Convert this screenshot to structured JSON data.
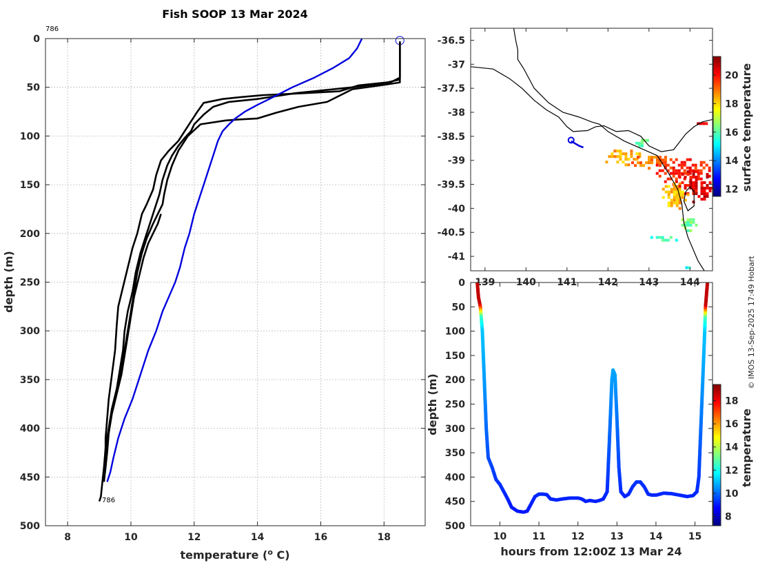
{
  "colors": {
    "profile_black": "#000000",
    "profile_blue": "#0000dd",
    "coast": "#000000"
  },
  "chart_data": [
    {
      "id": "profiles",
      "type": "line",
      "title": "Fish SOOP 13 Mar 2024",
      "xlabel": "temperature (",
      "xlabel_sup": "o",
      "xlabel_end": " C)",
      "ylabel": "depth (m)",
      "xlim": [
        7.3,
        19.3
      ],
      "ylim": [
        0,
        500
      ],
      "xticks": [
        8,
        10,
        12,
        14,
        16,
        18
      ],
      "yticks": [
        0,
        50,
        100,
        150,
        200,
        250,
        300,
        350,
        400,
        450,
        500
      ],
      "annotation_top": "786",
      "annotation_bottom": "786",
      "start_marker": [
        18.5,
        2
      ],
      "series": [
        {
          "name": "profile-down-1",
          "color": "black",
          "points": [
            [
              18.5,
              3
            ],
            [
              18.5,
              40
            ],
            [
              18.2,
              45
            ],
            [
              17.0,
              50
            ],
            [
              15.2,
              56
            ],
            [
              14.0,
              62
            ],
            [
              13.1,
              65
            ],
            [
              12.6,
              70
            ],
            [
              12.3,
              78
            ],
            [
              12.0,
              88
            ],
            [
              11.9,
              95
            ],
            [
              11.7,
              102
            ],
            [
              11.5,
              110
            ],
            [
              11.3,
              120
            ],
            [
              11.15,
              130
            ],
            [
              11.0,
              145
            ],
            [
              10.9,
              160
            ],
            [
              10.75,
              175
            ],
            [
              10.6,
              190
            ],
            [
              10.45,
              205
            ],
            [
              10.3,
              220
            ],
            [
              10.15,
              240
            ],
            [
              10.05,
              260
            ],
            [
              9.9,
              280
            ],
            [
              9.8,
              300
            ],
            [
              9.75,
              320
            ],
            [
              9.65,
              340
            ],
            [
              9.55,
              360
            ],
            [
              9.4,
              380
            ],
            [
              9.3,
              400
            ],
            [
              9.2,
              420
            ],
            [
              9.15,
              440
            ],
            [
              9.1,
              455
            ],
            [
              9.05,
              470
            ],
            [
              9.0,
              475
            ]
          ]
        },
        {
          "name": "profile-up-1",
          "color": "black",
          "points": [
            [
              9.15,
              455
            ],
            [
              9.2,
              440
            ],
            [
              9.25,
              420
            ],
            [
              9.3,
              400
            ],
            [
              9.4,
              380
            ],
            [
              9.55,
              360
            ],
            [
              9.7,
              340
            ],
            [
              9.8,
              320
            ],
            [
              9.9,
              300
            ],
            [
              10.0,
              280
            ],
            [
              10.1,
              260
            ],
            [
              10.2,
              240
            ],
            [
              10.35,
              220
            ],
            [
              10.5,
              205
            ],
            [
              10.7,
              190
            ],
            [
              10.85,
              180
            ],
            [
              11.0,
              170
            ],
            [
              11.05,
              160
            ],
            [
              11.15,
              145
            ],
            [
              11.3,
              130
            ],
            [
              11.5,
              115
            ],
            [
              11.8,
              100
            ],
            [
              12.2,
              88
            ],
            [
              13.0,
              84
            ],
            [
              13.4,
              83
            ],
            [
              14.0,
              82
            ],
            [
              14.6,
              76
            ],
            [
              15.3,
              70
            ],
            [
              16.2,
              65
            ],
            [
              17.0,
              52
            ],
            [
              18.1,
              47
            ],
            [
              18.5,
              45
            ],
            [
              18.5,
              3
            ]
          ]
        },
        {
          "name": "profile-down-2",
          "color": "black",
          "points": [
            [
              18.5,
              3
            ],
            [
              18.5,
              42
            ],
            [
              18.1,
              45
            ],
            [
              17.2,
              48
            ],
            [
              16.6,
              54
            ],
            [
              15.5,
              56
            ],
            [
              14.2,
              58
            ],
            [
              13.5,
              60
            ],
            [
              12.9,
              62
            ],
            [
              12.3,
              66
            ],
            [
              12.1,
              75
            ],
            [
              11.9,
              85
            ],
            [
              11.7,
              95
            ],
            [
              11.5,
              105
            ],
            [
              11.2,
              115
            ],
            [
              10.95,
              125
            ],
            [
              10.8,
              140
            ],
            [
              10.7,
              155
            ],
            [
              10.5,
              170
            ],
            [
              10.35,
              180
            ],
            [
              10.2,
              200
            ],
            [
              10.05,
              215
            ],
            [
              9.9,
              235
            ],
            [
              9.75,
              255
            ],
            [
              9.6,
              275
            ],
            [
              9.55,
              295
            ],
            [
              9.5,
              320
            ],
            [
              9.4,
              345
            ],
            [
              9.3,
              370
            ],
            [
              9.25,
              390
            ],
            [
              9.2,
              410
            ],
            [
              9.2,
              430
            ],
            [
              9.15,
              450
            ],
            [
              9.2,
              440
            ],
            [
              9.25,
              425
            ],
            [
              9.3,
              405
            ],
            [
              9.4,
              385
            ],
            [
              9.55,
              365
            ],
            [
              9.7,
              345
            ],
            [
              9.8,
              325
            ],
            [
              9.9,
              305
            ],
            [
              10.0,
              285
            ],
            [
              10.1,
              265
            ],
            [
              10.25,
              245
            ],
            [
              10.4,
              225
            ],
            [
              10.55,
              210
            ],
            [
              10.7,
              200
            ],
            [
              10.85,
              190
            ],
            [
              10.95,
              180
            ]
          ]
        }
      ],
      "blue_series": {
        "name": "reference-profile",
        "color": "blue",
        "points": [
          [
            17.3,
            0
          ],
          [
            17.15,
            10
          ],
          [
            16.9,
            20
          ],
          [
            16.4,
            30
          ],
          [
            15.8,
            40
          ],
          [
            15.1,
            50
          ],
          [
            14.5,
            60
          ],
          [
            14.0,
            68
          ],
          [
            13.6,
            75
          ],
          [
            13.3,
            82
          ],
          [
            13.1,
            88
          ],
          [
            12.9,
            95
          ],
          [
            12.75,
            105
          ],
          [
            12.6,
            120
          ],
          [
            12.45,
            135
          ],
          [
            12.3,
            150
          ],
          [
            12.15,
            165
          ],
          [
            12.0,
            180
          ],
          [
            11.85,
            200
          ],
          [
            11.7,
            215
          ],
          [
            11.55,
            235
          ],
          [
            11.4,
            250
          ],
          [
            11.2,
            265
          ],
          [
            11.0,
            280
          ],
          [
            10.8,
            300
          ],
          [
            10.55,
            320
          ],
          [
            10.3,
            345
          ],
          [
            10.05,
            370
          ],
          [
            9.8,
            390
          ],
          [
            9.6,
            410
          ],
          [
            9.45,
            430
          ],
          [
            9.35,
            445
          ],
          [
            9.25,
            455
          ]
        ]
      }
    },
    {
      "id": "map",
      "type": "heatmap",
      "colorbar_label": "surface temperature",
      "colorbar_ticks": [
        12,
        14,
        16,
        18,
        20
      ],
      "colorbar_range": [
        11.5,
        21.3
      ],
      "lat_ticks": [
        -36.5,
        -37,
        -37.5,
        -38,
        -38.5,
        -39,
        -39.5,
        -40,
        -40.5,
        -41
      ],
      "lon_ticks": [
        139,
        140,
        141,
        142,
        143,
        144
      ],
      "lon_tick_labels": [
        "139",
        "140",
        "141",
        "142",
        "143",
        "144"
      ],
      "lat_range": [
        -41.3,
        -36.25
      ],
      "lon_range": [
        138.65,
        144.55
      ],
      "ship_track": [
        [
          141.1,
          -38.6
        ],
        [
          141.2,
          -38.65
        ],
        [
          141.3,
          -38.7
        ],
        [
          141.4,
          -38.73
        ]
      ],
      "ship_marker": [
        141.1,
        -38.58
      ],
      "sst_blobs": [
        {
          "lon": 142.3,
          "lat": -38.9,
          "rlon": 0.5,
          "rlat": 0.18,
          "t": 18.4
        },
        {
          "lon": 143.0,
          "lat": -39.0,
          "rlon": 0.5,
          "rlat": 0.15,
          "t": 19.0
        },
        {
          "lon": 143.8,
          "lat": -39.2,
          "rlon": 0.7,
          "rlat": 0.3,
          "t": 19.8
        },
        {
          "lon": 144.1,
          "lat": -39.5,
          "rlon": 0.45,
          "rlat": 0.35,
          "t": 20.3
        },
        {
          "lon": 143.6,
          "lat": -39.7,
          "rlon": 0.35,
          "rlat": 0.3,
          "t": 18.3
        },
        {
          "lon": 143.3,
          "lat": -40.6,
          "rlon": 0.4,
          "rlat": 0.08,
          "t": 15.7
        },
        {
          "lon": 143.9,
          "lat": -40.3,
          "rlon": 0.25,
          "rlat": 0.15,
          "t": 16.3
        },
        {
          "lon": 142.8,
          "lat": -38.6,
          "rlon": 0.2,
          "rlat": 0.1,
          "t": 16.0
        },
        {
          "lon": 144.3,
          "lat": -38.2,
          "rlon": 0.2,
          "rlat": 0.05,
          "t": 20.5
        },
        {
          "lon": 143.9,
          "lat": -41.2,
          "rlon": 0.15,
          "rlat": 0.05,
          "t": 15.5
        }
      ]
    },
    {
      "id": "section",
      "type": "scatter",
      "xlabel": "hours from 12:00Z 13 Mar 24",
      "ylabel": "depth (m)",
      "colorbar_label": "temperature",
      "colorbar_ticks": [
        8,
        10,
        12,
        14,
        16,
        18
      ],
      "colorbar_range": [
        7.2,
        19.4
      ],
      "xlim": [
        9.25,
        15.45
      ],
      "ylim": [
        0,
        500
      ],
      "xticks": [
        10,
        11,
        12,
        13,
        14,
        15
      ],
      "yticks": [
        0,
        50,
        100,
        150,
        200,
        250,
        300,
        350,
        400,
        450,
        500
      ],
      "track": [
        [
          9.42,
          0
        ],
        [
          9.45,
          30
        ],
        [
          9.5,
          50
        ],
        [
          9.55,
          100
        ],
        [
          9.6,
          200
        ],
        [
          9.65,
          300
        ],
        [
          9.7,
          360
        ],
        [
          9.8,
          380
        ],
        [
          9.9,
          405
        ],
        [
          10.0,
          415
        ],
        [
          10.1,
          430
        ],
        [
          10.2,
          445
        ],
        [
          10.3,
          462
        ],
        [
          10.45,
          470
        ],
        [
          10.6,
          472
        ],
        [
          10.7,
          470
        ],
        [
          10.8,
          455
        ],
        [
          10.9,
          440
        ],
        [
          11.0,
          435
        ],
        [
          11.1,
          435
        ],
        [
          11.2,
          436
        ],
        [
          11.3,
          445
        ],
        [
          11.45,
          447
        ],
        [
          11.6,
          445
        ],
        [
          11.8,
          443
        ],
        [
          12.0,
          443
        ],
        [
          12.1,
          445
        ],
        [
          12.2,
          450
        ],
        [
          12.3,
          448
        ],
        [
          12.45,
          450
        ],
        [
          12.55,
          448
        ],
        [
          12.65,
          445
        ],
        [
          12.75,
          430
        ],
        [
          12.82,
          300
        ],
        [
          12.87,
          200
        ],
        [
          12.9,
          180
        ],
        [
          12.95,
          190
        ],
        [
          13.0,
          280
        ],
        [
          13.05,
          380
        ],
        [
          13.1,
          430
        ],
        [
          13.2,
          440
        ],
        [
          13.3,
          435
        ],
        [
          13.4,
          420
        ],
        [
          13.5,
          410
        ],
        [
          13.6,
          410
        ],
        [
          13.7,
          420
        ],
        [
          13.8,
          435
        ],
        [
          13.9,
          437
        ],
        [
          14.0,
          437
        ],
        [
          14.1,
          435
        ],
        [
          14.2,
          433
        ],
        [
          14.4,
          434
        ],
        [
          14.6,
          437
        ],
        [
          14.8,
          440
        ],
        [
          14.95,
          438
        ],
        [
          15.05,
          430
        ],
        [
          15.1,
          400
        ],
        [
          15.15,
          300
        ],
        [
          15.2,
          200
        ],
        [
          15.25,
          100
        ],
        [
          15.27,
          50
        ],
        [
          15.3,
          20
        ],
        [
          15.32,
          0
        ]
      ]
    }
  ],
  "footer": {
    "credit": "© IMOS 13-Sep-2025 17:49 Hobart"
  }
}
